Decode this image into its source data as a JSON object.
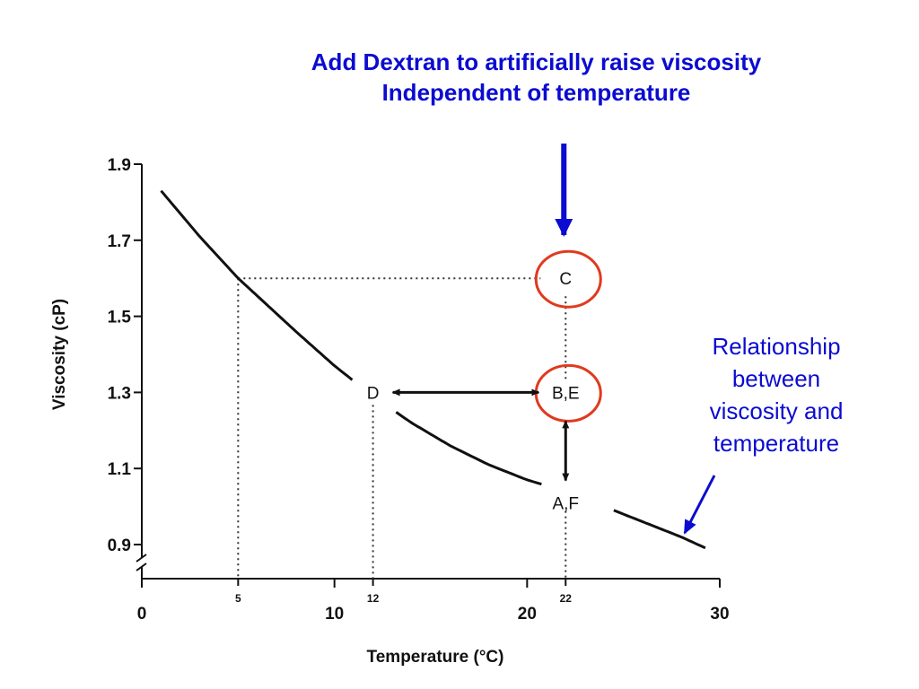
{
  "annotations": {
    "heading_line1": "Add Dextran to artificially raise viscosity",
    "heading_line2": "Independent of temperature",
    "note_line1": "Relationship",
    "note_line2": "between",
    "note_line3": "viscosity and",
    "note_line4": "temperature"
  },
  "colors": {
    "annotation_text": "#0b0bd1",
    "highlight_circle": "#e03a1e",
    "curve": "#111111"
  },
  "chart_data": {
    "type": "line",
    "xlabel": "Temperature (°C)",
    "ylabel": "Viscosity (cP)",
    "xlim": [
      0,
      30
    ],
    "ylim": [
      0.9,
      1.9
    ],
    "x_ticks": [
      "0",
      "10",
      "20",
      "30"
    ],
    "x_ticks_extra": [
      "5",
      "12",
      "22"
    ],
    "y_ticks": [
      "0.9",
      "1.1",
      "1.3",
      "1.5",
      "1.7",
      "1.9"
    ],
    "grid": false,
    "series": [
      {
        "x": [
          1,
          3,
          5,
          8,
          10,
          12,
          14,
          16,
          18,
          20,
          22,
          24,
          26,
          28,
          29.3
        ],
        "y": [
          1.83,
          1.71,
          1.6,
          1.46,
          1.37,
          1.29,
          1.22,
          1.16,
          1.11,
          1.07,
          1.04,
          1.0,
          0.96,
          0.92,
          0.89
        ]
      }
    ],
    "points": [
      {
        "label": "C",
        "x": 22,
        "y": 1.6,
        "circled": true
      },
      {
        "label": "D",
        "x": 12,
        "y": 1.3,
        "circled": false
      },
      {
        "label": "B,E",
        "x": 22,
        "y": 1.3,
        "circled": true
      },
      {
        "label": "A,F",
        "x": 22,
        "y": 1.04,
        "circled": false
      }
    ]
  }
}
